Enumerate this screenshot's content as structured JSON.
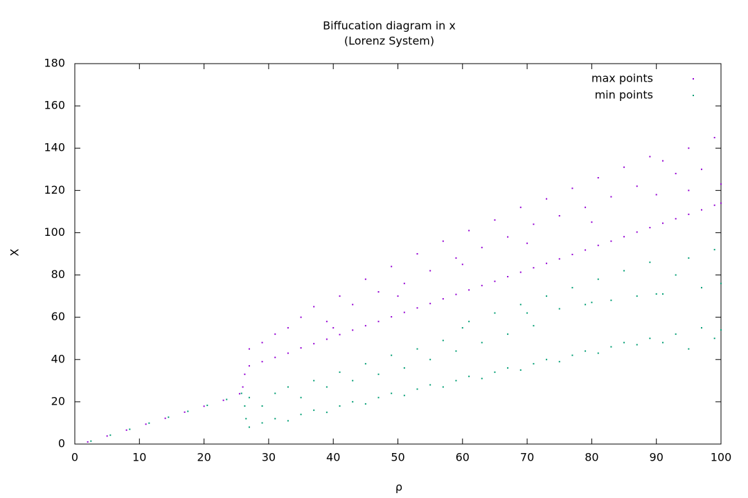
{
  "chart_data": {
    "type": "scatter",
    "title": "Biffucation diagram in x",
    "subtitle": "(Lorenz System)",
    "x_label": "ρ",
    "y_label": "X",
    "xlim": [
      0,
      100
    ],
    "ylim": [
      0,
      180
    ],
    "xticks": [
      0,
      10,
      20,
      30,
      40,
      50,
      60,
      70,
      80,
      90,
      100
    ],
    "yticks": [
      0,
      20,
      40,
      60,
      80,
      100,
      120,
      140,
      160,
      180
    ],
    "grid": false,
    "legend": "top-right",
    "series": [
      {
        "name": "max points",
        "color": "#9400d3",
        "x": [
          2,
          5,
          8,
          11,
          14,
          17,
          20,
          23,
          25.5,
          26,
          26.3,
          27,
          27,
          29,
          29,
          31,
          31,
          33,
          33,
          35,
          35,
          37,
          37,
          39,
          39,
          41,
          41,
          43,
          43,
          45,
          45,
          47,
          47,
          49,
          49,
          51,
          51,
          53,
          53,
          55,
          55,
          57,
          57,
          59,
          59,
          61,
          61,
          63,
          63,
          65,
          65,
          67,
          67,
          69,
          69,
          71,
          71,
          73,
          73,
          75,
          75,
          77,
          77,
          79,
          79,
          81,
          81,
          83,
          83,
          85,
          85,
          87,
          87,
          89,
          89,
          91,
          91,
          93,
          93,
          95,
          95,
          97,
          97,
          99,
          99,
          40,
          50,
          60,
          70,
          80,
          90,
          95,
          100,
          100
        ],
        "values": [
          1,
          3.8,
          6.6,
          9.4,
          12.2,
          15.1,
          17.9,
          20.7,
          23.8,
          27,
          33,
          37,
          45,
          39,
          48,
          41,
          52,
          43,
          55,
          45.5,
          60,
          47.5,
          65,
          49.6,
          58,
          51.8,
          70,
          53.9,
          66,
          56,
          78,
          58,
          72,
          60.2,
          84,
          62.3,
          76,
          64.4,
          90,
          66.5,
          82,
          68.7,
          96,
          70.8,
          88,
          72.9,
          101,
          75,
          93,
          77,
          106,
          79.2,
          98,
          81.3,
          112,
          83.4,
          104,
          85.5,
          116,
          87.6,
          108,
          89.7,
          121,
          91.8,
          112,
          94,
          126,
          96,
          117,
          98.1,
          131,
          100.3,
          122,
          102.4,
          136,
          104.5,
          134,
          106.6,
          128,
          108.7,
          140,
          110.8,
          130,
          113,
          145,
          55,
          70,
          85,
          95,
          105,
          118,
          120,
          123,
          114
        ]
      },
      {
        "name": "min points",
        "color": "#009e73",
        "x": [
          2.5,
          5.5,
          8.5,
          11.5,
          14.5,
          17.5,
          20.5,
          23.5,
          25.8,
          26.3,
          26.5,
          27,
          27,
          29,
          29,
          31,
          31,
          33,
          33,
          35,
          35,
          37,
          37,
          39,
          39,
          41,
          41,
          43,
          43,
          45,
          45,
          47,
          47,
          49,
          49,
          51,
          51,
          53,
          53,
          55,
          55,
          57,
          57,
          59,
          59,
          61,
          61,
          63,
          63,
          65,
          65,
          67,
          67,
          69,
          69,
          71,
          71,
          73,
          73,
          75,
          75,
          77,
          77,
          79,
          79,
          81,
          81,
          83,
          83,
          85,
          85,
          87,
          87,
          89,
          89,
          91,
          91,
          93,
          93,
          95,
          95,
          97,
          97,
          99,
          99,
          60,
          70,
          80,
          90,
          100,
          100
        ],
        "values": [
          1.4,
          4.2,
          7,
          9.9,
          12.7,
          15.5,
          18.3,
          21.1,
          24,
          18,
          12,
          8,
          22,
          10,
          18,
          12,
          24,
          11,
          27,
          14,
          22,
          16,
          30,
          15,
          27,
          18,
          34,
          20,
          30,
          19,
          38,
          22,
          33,
          24,
          42,
          23,
          36,
          26,
          45,
          28,
          40,
          27,
          49,
          30,
          44,
          32,
          58,
          31,
          48,
          34,
          62,
          36,
          52,
          35,
          66,
          38,
          56,
          40,
          70,
          39,
          64,
          42,
          74,
          44,
          66,
          43,
          78,
          46,
          68,
          48,
          82,
          47,
          70,
          50,
          86,
          48,
          71,
          52,
          80,
          45,
          88,
          55,
          74,
          50,
          92,
          55,
          62,
          67,
          71,
          76,
          54
        ]
      }
    ]
  }
}
